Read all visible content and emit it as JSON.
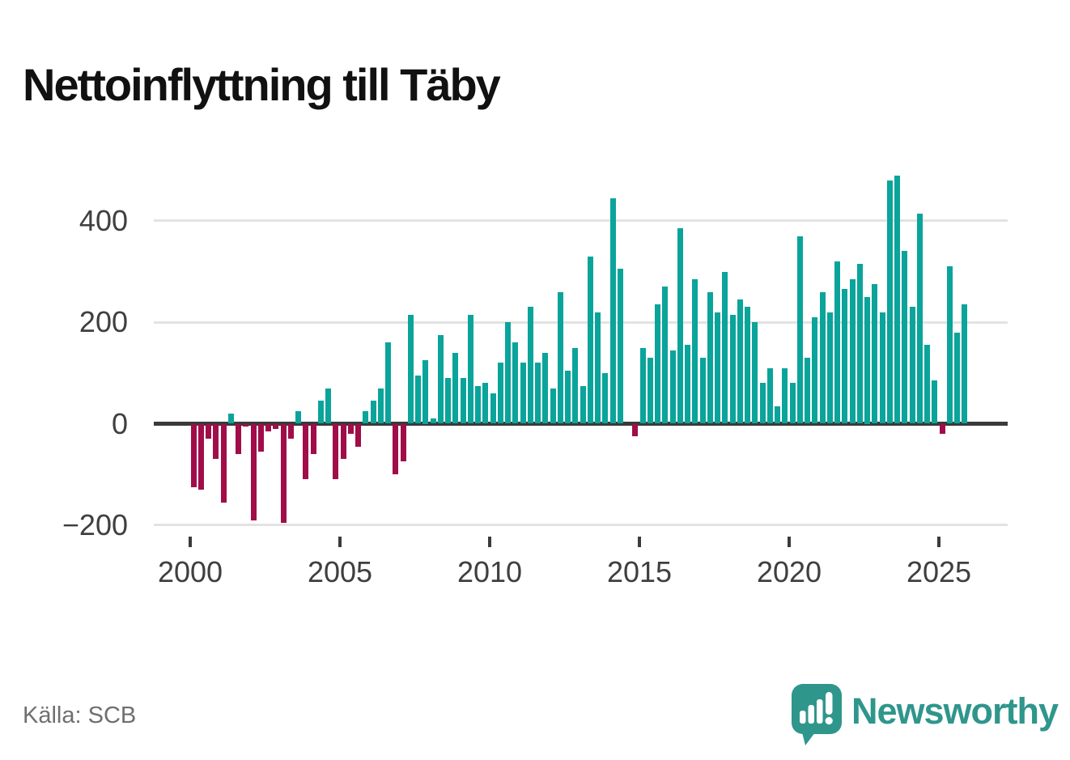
{
  "title": "Nettoinflyttning till Täby",
  "source": "Källa: SCB",
  "brand": {
    "name": "Newsworthy",
    "logo_icon": "speech-bubble-bar-chart-icon"
  },
  "colors": {
    "positive": "#0aa49b",
    "negative": "#a10d49",
    "grid": "#e3e3e3",
    "axis": "#3a3a3a",
    "tick_text": "#3f3f3f",
    "muted_text": "#6f6f6f",
    "brand_teal": "#2f968c",
    "title_text": "#111111"
  },
  "chart_data": {
    "type": "bar",
    "title": "Nettoinflyttning till Täby",
    "xlabel": "",
    "ylabel": "",
    "grid": "horizontal",
    "legend_position": "none",
    "ylim": [
      -230,
      520
    ],
    "y_ticks": [
      400,
      200,
      0,
      -200
    ],
    "y_tick_labels": [
      "400",
      "200",
      "0",
      "−200"
    ],
    "x_tick_years": [
      2000,
      2005,
      2010,
      2015,
      2020,
      2025
    ],
    "x_tick_labels": [
      "2000",
      "2005",
      "2010",
      "2015",
      "2020",
      "2025"
    ],
    "categories": [
      "2000Q1",
      "2000Q2",
      "2000Q3",
      "2000Q4",
      "2001Q1",
      "2001Q2",
      "2001Q3",
      "2001Q4",
      "2002Q1",
      "2002Q2",
      "2002Q3",
      "2002Q4",
      "2003Q1",
      "2003Q2",
      "2003Q3",
      "2003Q4",
      "2004Q1",
      "2004Q2",
      "2004Q3",
      "2004Q4",
      "2005Q1",
      "2005Q2",
      "2005Q3",
      "2005Q4",
      "2006Q1",
      "2006Q2",
      "2006Q3",
      "2006Q4",
      "2007Q1",
      "2007Q2",
      "2007Q3",
      "2007Q4",
      "2008Q1",
      "2008Q2",
      "2008Q3",
      "2008Q4",
      "2009Q1",
      "2009Q2",
      "2009Q3",
      "2009Q4",
      "2010Q1",
      "2010Q2",
      "2010Q3",
      "2010Q4",
      "2011Q1",
      "2011Q2",
      "2011Q3",
      "2011Q4",
      "2012Q1",
      "2012Q2",
      "2012Q3",
      "2012Q4",
      "2013Q1",
      "2013Q2",
      "2013Q3",
      "2013Q4",
      "2014Q1",
      "2014Q2",
      "2014Q3",
      "2014Q4",
      "2015Q1",
      "2015Q2",
      "2015Q3",
      "2015Q4",
      "2016Q1",
      "2016Q2",
      "2016Q3",
      "2016Q4",
      "2017Q1",
      "2017Q2",
      "2017Q3",
      "2017Q4",
      "2018Q1",
      "2018Q2",
      "2018Q3",
      "2018Q4",
      "2019Q1",
      "2019Q2",
      "2019Q3",
      "2019Q4",
      "2020Q1",
      "2020Q2",
      "2020Q3",
      "2020Q4",
      "2021Q1",
      "2021Q2",
      "2021Q3",
      "2021Q4",
      "2022Q1",
      "2022Q2",
      "2022Q3",
      "2022Q4",
      "2023Q1",
      "2023Q2",
      "2023Q3",
      "2023Q4",
      "2024Q1",
      "2024Q2",
      "2024Q3",
      "2024Q4",
      "2025Q1",
      "2025Q2",
      "2025Q3",
      "2025Q4"
    ],
    "values": [
      -125,
      -130,
      -30,
      -70,
      -155,
      20,
      -60,
      -5,
      -190,
      -55,
      -15,
      -10,
      -195,
      -30,
      25,
      -110,
      -60,
      45,
      70,
      -110,
      -70,
      -20,
      -45,
      25,
      45,
      70,
      160,
      -100,
      -75,
      215,
      95,
      125,
      10,
      175,
      90,
      140,
      90,
      215,
      75,
      80,
      60,
      120,
      200,
      160,
      120,
      230,
      120,
      140,
      70,
      260,
      105,
      150,
      75,
      330,
      220,
      100,
      445,
      305,
      0,
      -25,
      150,
      130,
      235,
      270,
      145,
      385,
      155,
      285,
      130,
      260,
      220,
      300,
      215,
      245,
      230,
      200,
      80,
      110,
      35,
      110,
      80,
      370,
      130,
      210,
      260,
      220,
      320,
      265,
      285,
      315,
      250,
      275,
      220,
      480,
      490,
      340,
      230,
      415,
      155,
      85,
      -20,
      310,
      180,
      235
    ]
  }
}
